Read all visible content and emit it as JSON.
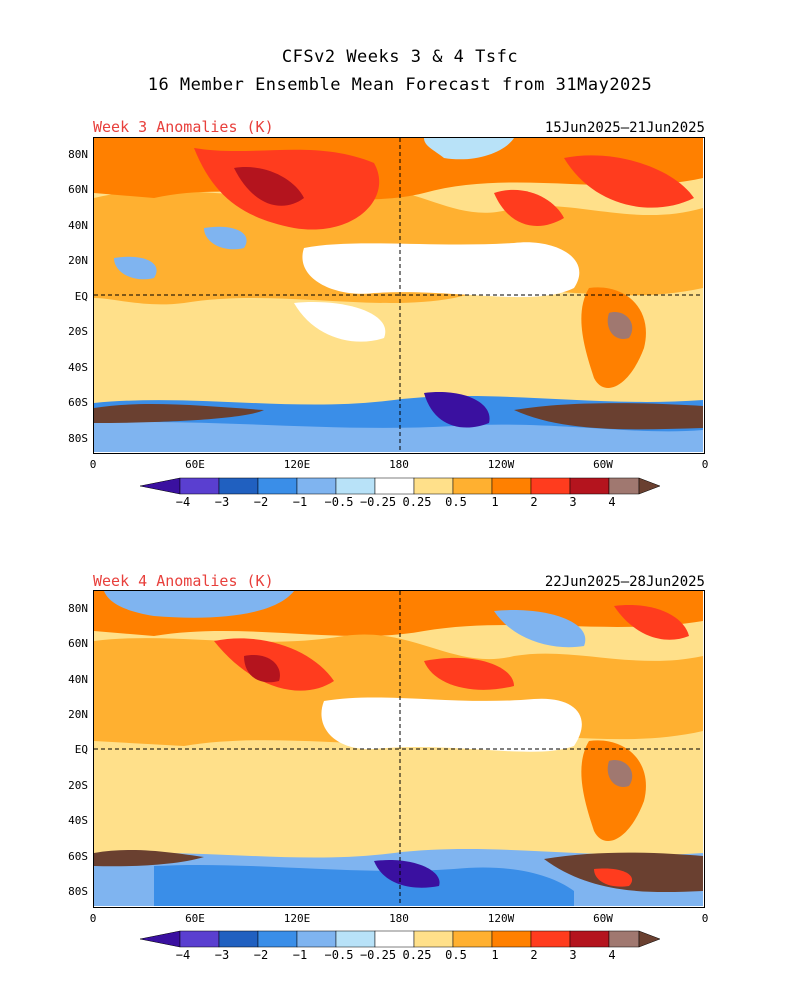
{
  "title_line1": "CFSv2 Weeks 3 & 4 Tsfc",
  "title_line2": "16 Member Ensemble Mean Forecast from 31May2025",
  "panels": [
    {
      "label": "Week 3 Anomalies (K)",
      "date_range": "15Jun2025—21Jun2025"
    },
    {
      "label": "Week 4 Anomalies (K)",
      "date_range": "22Jun2025—28Jun2025"
    }
  ],
  "lat_labels": [
    "80N",
    "60N",
    "40N",
    "20N",
    "EQ",
    "20S",
    "40S",
    "60S",
    "80S"
  ],
  "lon_labels": [
    "0",
    "60E",
    "120E",
    "180",
    "120W",
    "60W",
    "0"
  ],
  "colorbar": {
    "labels": [
      "−4",
      "−3",
      "−2",
      "−1",
      "−0.5",
      "−0.25",
      "0.25",
      "0.5",
      "1",
      "2",
      "3",
      "4"
    ],
    "colors": [
      "#3a10a0",
      "#5a3fd0",
      "#2060c0",
      "#3a8ee8",
      "#7fb4f0",
      "#b8e2f8",
      "#ffffff",
      "#ffe08a",
      "#ffb030",
      "#ff8000",
      "#ff3c1e",
      "#b4141e",
      "#a07870",
      "#6a4030"
    ]
  }
}
